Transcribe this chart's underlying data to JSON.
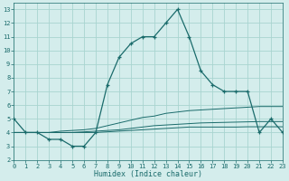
{
  "x": [
    0,
    1,
    2,
    3,
    4,
    5,
    6,
    7,
    8,
    9,
    10,
    11,
    12,
    13,
    14,
    15,
    16,
    17,
    18,
    19,
    20,
    21,
    22,
    23
  ],
  "main_line": [
    5,
    4,
    4,
    3.5,
    3.5,
    3,
    3,
    4,
    7.5,
    9.5,
    10.5,
    11,
    11,
    12,
    13,
    11,
    8.5,
    7.5,
    7,
    7,
    7,
    4,
    5,
    4
  ],
  "trend1": [
    4.0,
    4.0,
    4.0,
    4.0,
    4.1,
    4.15,
    4.2,
    4.3,
    4.5,
    4.7,
    4.9,
    5.1,
    5.2,
    5.4,
    5.5,
    5.6,
    5.65,
    5.7,
    5.75,
    5.8,
    5.85,
    5.9,
    5.9,
    5.9
  ],
  "trend2": [
    4.0,
    4.0,
    4.0,
    4.0,
    4.0,
    4.0,
    4.05,
    4.1,
    4.15,
    4.2,
    4.3,
    4.4,
    4.5,
    4.55,
    4.6,
    4.65,
    4.7,
    4.72,
    4.74,
    4.76,
    4.78,
    4.8,
    4.8,
    4.8
  ],
  "trend3": [
    4.0,
    4.0,
    4.0,
    4.0,
    4.0,
    4.0,
    4.0,
    4.0,
    4.05,
    4.1,
    4.15,
    4.2,
    4.25,
    4.3,
    4.35,
    4.4,
    4.4,
    4.4,
    4.4,
    4.4,
    4.42,
    4.42,
    4.42,
    4.42
  ],
  "line_color": "#1a6b6b",
  "bg_color": "#d4edec",
  "grid_color": "#a8d4d0",
  "xlabel": "Humidex (Indice chaleur)",
  "ylabel_ticks": [
    2,
    3,
    4,
    5,
    6,
    7,
    8,
    9,
    10,
    11,
    12,
    13
  ],
  "xticks": [
    0,
    1,
    2,
    3,
    4,
    5,
    6,
    7,
    8,
    9,
    10,
    11,
    12,
    13,
    14,
    15,
    16,
    17,
    18,
    19,
    20,
    21,
    22,
    23
  ],
  "xlim": [
    0,
    23
  ],
  "ylim": [
    2,
    13.5
  ]
}
